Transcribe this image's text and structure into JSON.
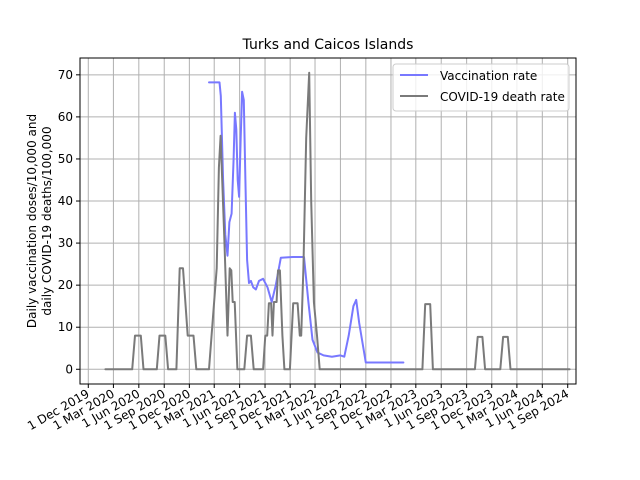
{
  "chart_data": {
    "type": "line",
    "title": "Turks and Caicos Islands",
    "ylabel_lines": [
      "Daily vaccination doses/10,000 and",
      "daily COVID-19 deaths/100,000"
    ],
    "xlabel": "",
    "x_ticks": [
      "1 Dec 2019",
      "1 Mar 2020",
      "1 Jun 2020",
      "1 Sep 2020",
      "1 Dec 2020",
      "1 Mar 2021",
      "1 Jun 2021",
      "1 Sep 2021",
      "1 Dec 2021",
      "1 Mar 2022",
      "1 Jun 2022",
      "1 Sep 2022",
      "1 Dec 2022",
      "1 Mar 2023",
      "1 Jun 2023",
      "1 Sep 2023",
      "1 Dec 2023",
      "1 Mar 2024",
      "1 Jun 2024",
      "1 Sep 2024"
    ],
    "y_ticks": [
      0,
      10,
      20,
      30,
      40,
      50,
      60,
      70
    ],
    "xlim": [
      "2019-11-01",
      "2024-10-01"
    ],
    "ylim": [
      -3.5,
      74
    ],
    "grid": true,
    "legend_position": "upper right",
    "series": [
      {
        "name": "Vaccination rate",
        "color": "#7878ff",
        "points": [
          [
            "2021-02-10",
            68.2
          ],
          [
            "2021-03-20",
            68.2
          ],
          [
            "2021-03-25",
            65.0
          ],
          [
            "2021-04-02",
            45.0
          ],
          [
            "2021-04-10",
            32.0
          ],
          [
            "2021-04-18",
            27.0
          ],
          [
            "2021-04-25",
            35.0
          ],
          [
            "2021-05-03",
            37.0
          ],
          [
            "2021-05-10",
            50.0
          ],
          [
            "2021-05-15",
            61.0
          ],
          [
            "2021-05-20",
            57.0
          ],
          [
            "2021-05-25",
            45.0
          ],
          [
            "2021-05-30",
            41.0
          ],
          [
            "2021-06-05",
            55.0
          ],
          [
            "2021-06-10",
            66.0
          ],
          [
            "2021-06-16",
            64.0
          ],
          [
            "2021-06-22",
            45.0
          ],
          [
            "2021-06-28",
            26.0
          ],
          [
            "2021-07-05",
            20.5
          ],
          [
            "2021-07-12",
            21.0
          ],
          [
            "2021-07-20",
            19.5
          ],
          [
            "2021-07-30",
            19.0
          ],
          [
            "2021-08-10",
            21.0
          ],
          [
            "2021-08-25",
            21.5
          ],
          [
            "2021-09-10",
            19.5
          ],
          [
            "2021-09-25",
            16.0
          ],
          [
            "2021-10-10",
            20.0
          ],
          [
            "2021-10-28",
            26.5
          ],
          [
            "2021-12-10",
            26.7
          ],
          [
            "2022-01-20",
            26.7
          ],
          [
            "2022-02-05",
            16.0
          ],
          [
            "2022-02-20",
            7.0
          ],
          [
            "2022-03-10",
            4.0
          ],
          [
            "2022-04-01",
            3.3
          ],
          [
            "2022-05-01",
            3.0
          ],
          [
            "2022-06-01",
            3.3
          ],
          [
            "2022-06-15",
            3.0
          ],
          [
            "2022-07-01",
            8.0
          ],
          [
            "2022-07-18",
            15.0
          ],
          [
            "2022-07-28",
            16.5
          ],
          [
            "2022-08-08",
            11.0
          ],
          [
            "2022-09-01",
            1.6
          ],
          [
            "2022-10-01",
            1.6
          ],
          [
            "2023-01-15",
            1.6
          ]
        ]
      },
      {
        "name": "COVID-19 death rate",
        "color": "#7a7a7a",
        "points": [
          [
            "2020-02-01",
            0
          ],
          [
            "2020-05-08",
            0
          ],
          [
            "2020-05-18",
            8.0
          ],
          [
            "2020-06-08",
            8.0
          ],
          [
            "2020-06-18",
            0
          ],
          [
            "2020-08-05",
            0
          ],
          [
            "2020-08-15",
            8.0
          ],
          [
            "2020-09-05",
            8.0
          ],
          [
            "2020-09-15",
            0
          ],
          [
            "2020-10-15",
            0
          ],
          [
            "2020-10-27",
            24.0
          ],
          [
            "2020-11-08",
            24.0
          ],
          [
            "2020-11-25",
            8.0
          ],
          [
            "2020-12-16",
            8.0
          ],
          [
            "2020-12-26",
            0
          ],
          [
            "2021-02-10",
            0
          ],
          [
            "2021-03-10",
            24.0
          ],
          [
            "2021-03-18",
            48.0
          ],
          [
            "2021-03-24",
            55.5
          ],
          [
            "2021-04-06",
            32.0
          ],
          [
            "2021-04-18",
            8.0
          ],
          [
            "2021-04-26",
            24.0
          ],
          [
            "2021-05-02",
            23.5
          ],
          [
            "2021-05-07",
            16.0
          ],
          [
            "2021-05-14",
            16.0
          ],
          [
            "2021-05-24",
            0
          ],
          [
            "2021-06-18",
            0
          ],
          [
            "2021-06-28",
            8.0
          ],
          [
            "2021-07-12",
            8.0
          ],
          [
            "2021-07-22",
            0
          ],
          [
            "2021-08-25",
            0
          ],
          [
            "2021-09-02",
            8.0
          ],
          [
            "2021-09-09",
            8.0
          ],
          [
            "2021-09-15",
            15.7
          ],
          [
            "2021-09-23",
            15.7
          ],
          [
            "2021-09-28",
            8.0
          ],
          [
            "2021-10-03",
            16.0
          ],
          [
            "2021-10-13",
            16.0
          ],
          [
            "2021-10-18",
            23.5
          ],
          [
            "2021-10-25",
            23.5
          ],
          [
            "2021-11-03",
            8.0
          ],
          [
            "2021-11-10",
            0
          ],
          [
            "2021-11-30",
            0
          ],
          [
            "2021-12-12",
            15.7
          ],
          [
            "2021-12-28",
            15.7
          ],
          [
            "2022-01-05",
            8.0
          ],
          [
            "2022-01-10",
            8.0
          ],
          [
            "2022-01-18",
            24.0
          ],
          [
            "2022-01-28",
            55.0
          ],
          [
            "2022-02-08",
            70.5
          ],
          [
            "2022-02-15",
            40.0
          ],
          [
            "2022-02-25",
            16.0
          ],
          [
            "2022-03-08",
            8.0
          ],
          [
            "2022-03-18",
            0
          ],
          [
            "2023-03-25",
            0
          ],
          [
            "2023-04-04",
            15.5
          ],
          [
            "2023-04-22",
            15.5
          ],
          [
            "2023-05-02",
            0
          ],
          [
            "2023-10-01",
            0
          ],
          [
            "2023-10-11",
            7.7
          ],
          [
            "2023-10-28",
            7.7
          ],
          [
            "2023-11-07",
            0
          ],
          [
            "2024-01-01",
            0
          ],
          [
            "2024-01-11",
            7.7
          ],
          [
            "2024-01-28",
            7.7
          ],
          [
            "2024-02-07",
            0
          ],
          [
            "2024-09-08",
            0
          ]
        ]
      }
    ]
  }
}
